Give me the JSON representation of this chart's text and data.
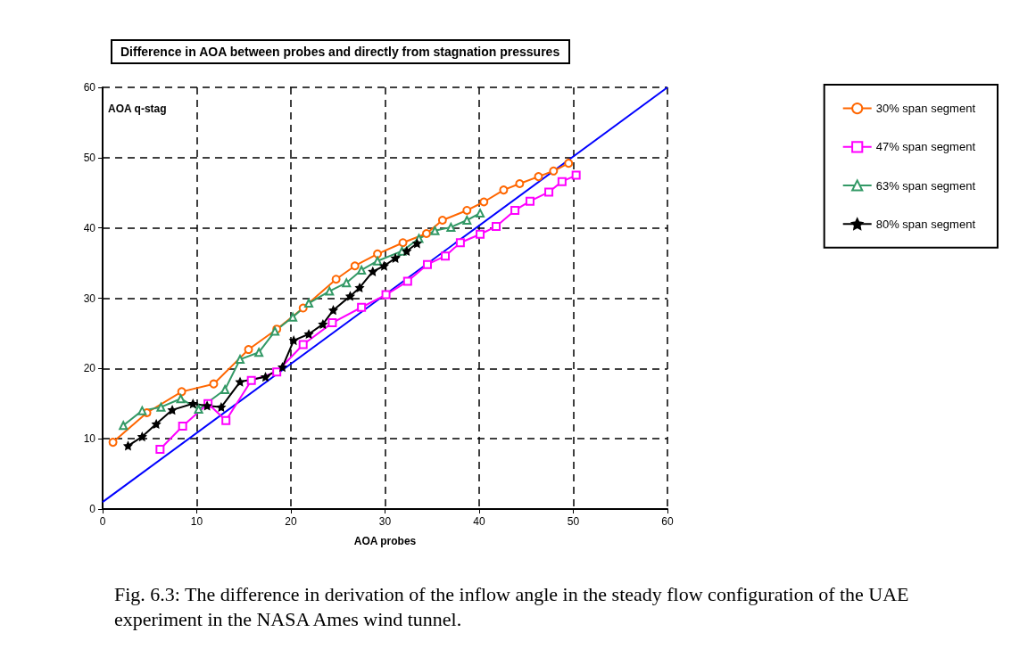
{
  "chart_data": {
    "type": "line",
    "title": "Difference in AOA between probes and directly from stagnation pressures",
    "xlabel": "AOA probes",
    "ylabel": "AOA q-stag",
    "xlim": [
      0,
      60
    ],
    "ylim": [
      0,
      60
    ],
    "xticks": [
      0,
      10,
      20,
      30,
      40,
      50,
      60
    ],
    "yticks": [
      0,
      10,
      20,
      30,
      40,
      50,
      60
    ],
    "grid": true,
    "legend": "right",
    "annotations": [
      "Fig. 6.3: The difference in derivation of the inflow angle in the steady flow configuration of the UAE experiment in the NASA Ames wind tunnel."
    ],
    "series": [
      {
        "name": "30% span segment",
        "color": "#ff6600",
        "marker": "circle",
        "x": [
          1.1,
          4.7,
          8.4,
          11.8,
          15.5,
          18.5,
          21.3,
          24.8,
          26.8,
          29.2,
          31.9,
          34.4,
          36.1,
          38.7,
          40.5,
          42.6,
          44.3,
          46.3,
          47.9,
          49.5
        ],
        "values": [
          9.5,
          13.7,
          16.7,
          17.8,
          22.7,
          25.6,
          28.6,
          32.7,
          34.6,
          36.3,
          37.9,
          39.2,
          41.1,
          42.5,
          43.7,
          45.4,
          46.3,
          47.3,
          48.1,
          49.2
        ]
      },
      {
        "name": "47% span segment",
        "color": "#ff00ff",
        "marker": "square",
        "x": [
          6.1,
          8.5,
          11.2,
          13.1,
          15.8,
          18.5,
          21.3,
          24.4,
          27.5,
          30.1,
          32.4,
          34.5,
          36.4,
          38.0,
          40.1,
          41.8,
          43.8,
          45.4,
          47.4,
          48.8,
          50.3
        ],
        "values": [
          8.5,
          11.8,
          15.0,
          12.6,
          18.3,
          19.5,
          23.4,
          26.5,
          28.7,
          30.5,
          32.4,
          34.8,
          36.0,
          37.9,
          39.1,
          40.2,
          42.5,
          43.8,
          45.1,
          46.6,
          47.5
        ]
      },
      {
        "name": "63% span segment",
        "color": "#339966",
        "marker": "triangle",
        "x": [
          2.2,
          4.2,
          6.2,
          8.3,
          10.2,
          13.0,
          14.6,
          16.6,
          18.3,
          20.2,
          21.9,
          24.1,
          25.9,
          27.5,
          29.2,
          31.8,
          33.6,
          35.3,
          37.0,
          38.7,
          40.1
        ],
        "values": [
          11.9,
          14.0,
          14.5,
          15.7,
          14.2,
          17.0,
          21.3,
          22.3,
          25.3,
          27.3,
          29.3,
          31.0,
          32.2,
          34.0,
          35.3,
          36.7,
          38.5,
          39.6,
          40.1,
          41.1,
          42.1
        ]
      },
      {
        "name": "80% span segment",
        "color": "#000000",
        "marker": "star",
        "x": [
          2.7,
          4.2,
          5.7,
          7.4,
          9.6,
          11.1,
          12.6,
          14.6,
          17.3,
          19.1,
          20.3,
          21.9,
          23.4,
          24.5,
          26.3,
          27.3,
          28.7,
          29.9,
          31.1,
          32.3,
          33.4
        ],
        "values": [
          9.0,
          10.3,
          12.1,
          14.1,
          15.0,
          14.7,
          14.5,
          18.1,
          18.8,
          20.2,
          24.0,
          24.9,
          26.3,
          28.3,
          30.3,
          31.5,
          33.8,
          34.6,
          35.7,
          36.7,
          37.8
        ]
      },
      {
        "color": "#0000ff",
        "marker": "none",
        "x": [
          0,
          60
        ],
        "values": [
          1,
          60
        ]
      }
    ]
  }
}
